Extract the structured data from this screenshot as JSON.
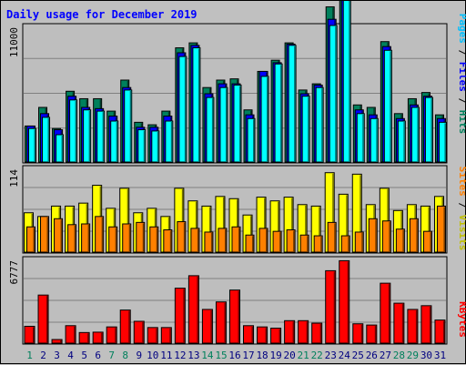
{
  "title": "Daily usage for December 2019",
  "colors": {
    "background": "#c0c0c0",
    "panel": "#bebebe",
    "grid": "#808080",
    "title": "#0000ff",
    "hits": "#00805c",
    "files": "#0000ff",
    "pages": "#00ffff",
    "visits": "#ffff00",
    "sites": "#ff8000",
    "kbytes": "#ff0000",
    "weekend_label": "#00805c",
    "weekday_label": "#000080"
  },
  "right_labels": {
    "top": [
      {
        "text": "Pages",
        "color": "#00c0ff"
      },
      {
        "text": " / ",
        "color": "#000000"
      },
      {
        "text": "Files",
        "color": "#0000ff"
      },
      {
        "text": " / ",
        "color": "#000000"
      },
      {
        "text": "Hits",
        "color": "#00805c"
      }
    ],
    "middle": [
      {
        "text": "Sites",
        "color": "#ff8000"
      },
      {
        "text": " / ",
        "color": "#000000"
      },
      {
        "text": "Visits",
        "color": "#c0c000"
      }
    ],
    "bottom": [
      {
        "text": "KBytes",
        "color": "#ff0000"
      }
    ]
  },
  "chart_data": {
    "type": "bar",
    "title": "Daily usage for December 2019",
    "categories": [
      "1",
      "2",
      "3",
      "4",
      "5",
      "6",
      "7",
      "8",
      "9",
      "10",
      "11",
      "12",
      "13",
      "14",
      "15",
      "16",
      "17",
      "18",
      "19",
      "20",
      "21",
      "22",
      "23",
      "24",
      "25",
      "26",
      "27",
      "28",
      "29",
      "30",
      "31"
    ],
    "weekend_days": [
      1,
      7,
      8,
      14,
      15,
      21,
      22,
      28,
      29
    ],
    "panels": [
      {
        "name": "hits-files-pages",
        "ymax_label": "11000",
        "ymax": 11000,
        "series": [
          {
            "name": "Hits",
            "values": [
              2900,
              4400,
              2700,
              5700,
              5100,
              5100,
              4100,
              6600,
              3200,
              3000,
              4100,
              9200,
              9600,
              6000,
              6600,
              6700,
              4200,
              7300,
              8200,
              9600,
              5800,
              6300,
              12500,
              13900,
              4600,
              4400,
              9700,
              3900,
              5100,
              5600,
              3800
            ]
          },
          {
            "name": "Files",
            "values": [
              2900,
              3900,
              2600,
              5300,
              4400,
              4300,
              3700,
              6000,
              2800,
              2800,
              3700,
              8800,
              9400,
              5500,
              6300,
              6300,
              3800,
              7300,
              8000,
              9500,
              5500,
              6200,
              11500,
              13700,
              4200,
              3800,
              9300,
              3500,
              4600,
              5300,
              3500
            ]
          },
          {
            "name": "Pages",
            "values": [
              2700,
              3600,
              2200,
              5000,
              4200,
              4100,
              3300,
              5800,
              2600,
              2500,
              3300,
              8500,
              9200,
              5200,
              6000,
              6200,
              3500,
              6900,
              7900,
              9400,
              5300,
              6000,
              11000,
              13500,
              3900,
              3500,
              9000,
              3300,
              4400,
              5200,
              3200
            ]
          }
        ]
      },
      {
        "name": "visits-sites",
        "ymax_label": "114",
        "ymax": 114,
        "series": [
          {
            "name": "Visits",
            "values": [
              53,
              48,
              62,
              62,
              66,
              90,
              59,
              86,
              53,
              59,
              48,
              86,
              69,
              62,
              75,
              72,
              50,
              74,
              69,
              74,
              64,
              62,
              107,
              78,
              105,
              64,
              86,
              56,
              64,
              62,
              75
            ]
          },
          {
            "name": "Sites",
            "values": [
              34,
              48,
              45,
              37,
              38,
              48,
              34,
              38,
              40,
              34,
              30,
              41,
              32,
              27,
              32,
              34,
              23,
              32,
              28,
              30,
              23,
              22,
              40,
              22,
              27,
              45,
              42,
              31,
              45,
              28,
              62
            ]
          }
        ]
      },
      {
        "name": "kbytes",
        "ymax_label": "6777",
        "ymax": 6777,
        "series": [
          {
            "name": "KBytes",
            "values": [
              1350,
              3850,
              290,
              1400,
              850,
              880,
              1300,
              2650,
              1750,
              1250,
              1250,
              4400,
              5400,
              2700,
              3300,
              4250,
              1400,
              1300,
              1200,
              1800,
              1800,
              1600,
              5800,
              6600,
              1550,
              1450,
              4800,
              3200,
              2700,
              3000,
              1850
            ]
          }
        ]
      }
    ]
  }
}
